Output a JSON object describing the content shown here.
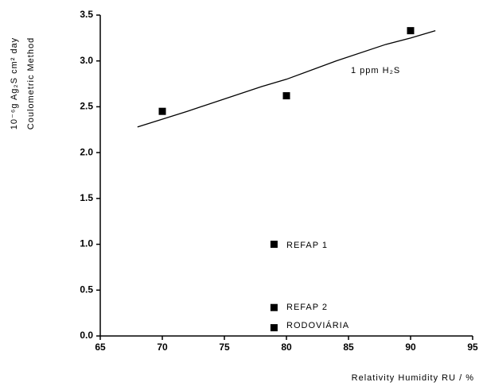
{
  "chart_data": {
    "type": "scatter",
    "x_label": "Relativity Humidity RU / %",
    "y_label": [
      "10⁻⁶g Ag₂S  cm² day",
      "Coulometric Method"
    ],
    "series": [
      {
        "mark": "square",
        "color": "#000000",
        "x": [
          70,
          80,
          90,
          79,
          79,
          79
        ],
        "values": [
          2.45,
          2.62,
          3.33,
          1.0,
          0.31,
          0.09
        ]
      },
      {
        "mark": "line",
        "color": "#000000",
        "x": [
          68,
          72,
          78,
          80,
          84,
          88,
          90,
          92
        ],
        "values": [
          2.28,
          2.45,
          2.72,
          2.8,
          3.0,
          3.18,
          3.25,
          3.33
        ]
      }
    ],
    "annotations": [
      "1 ppm H₂S",
      "REFAP 1",
      "REFAP 2",
      "RODOVIÁRIA"
    ],
    "xlim": [
      65,
      95
    ],
    "xticks": [
      65,
      70,
      75,
      80,
      85,
      90,
      95
    ],
    "ylim": [
      0,
      3.5
    ],
    "yticks": [
      {
        "value": 0,
        "label": "0.0"
      },
      0.5,
      {
        "value": 1,
        "label": "1.0"
      },
      1.5,
      {
        "value": 2,
        "label": "2.0"
      },
      2.5,
      {
        "value": 3,
        "label": "3.0"
      },
      3.5
    ]
  }
}
